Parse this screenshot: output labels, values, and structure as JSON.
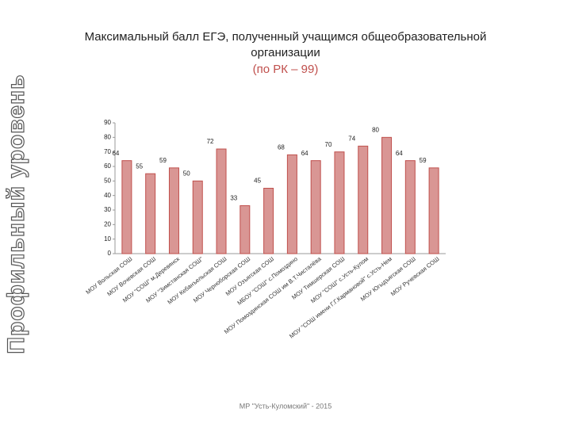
{
  "side_title": "Профильный уровень",
  "footer": "МР \"Усть-Куломский\" - 2015",
  "chart_data": {
    "type": "bar",
    "title": [
      "Максимальный балл ЕГЭ, полученный учащимся общеобразовательной",
      "организации"
    ],
    "subtitle": "(по РК – 99)",
    "categories": [
      "МОУ Вольская СОШ",
      "МОУ Вочевская СОШ",
      "МОУ \"СОШ\" м.Деревянск",
      "МОУ \"Зимстанская СОШ\"",
      "МОУ Кебанъельская СОШ",
      "МОУ Черноборская СОШ",
      "МОУ Озъягская СОШ",
      "МБОУ \"СОШ\" с.Помоздино",
      "МОУ Помоздинская СОШ им В.Т.Чисталёва",
      "МОУ Тимшерская СОШ",
      "МОУ \"СОШ\" с.Усть-Кулом",
      "МОУ \"СОШ имени Г.Г.Кармановой\" с.Усть-Нем",
      "МОУ Югыдъягская СОШ",
      "МОУ Руч­евская СОШ"
    ],
    "values": [
      64,
      55,
      59,
      50,
      72,
      33,
      45,
      68,
      64,
      70,
      74,
      80,
      64,
      59
    ],
    "color": "#d99694",
    "border_color": "#c0504d",
    "ylim": [
      0,
      90
    ],
    "yticks": [
      0,
      10,
      20,
      30,
      40,
      50,
      60,
      70,
      80,
      90
    ],
    "grid": false
  }
}
